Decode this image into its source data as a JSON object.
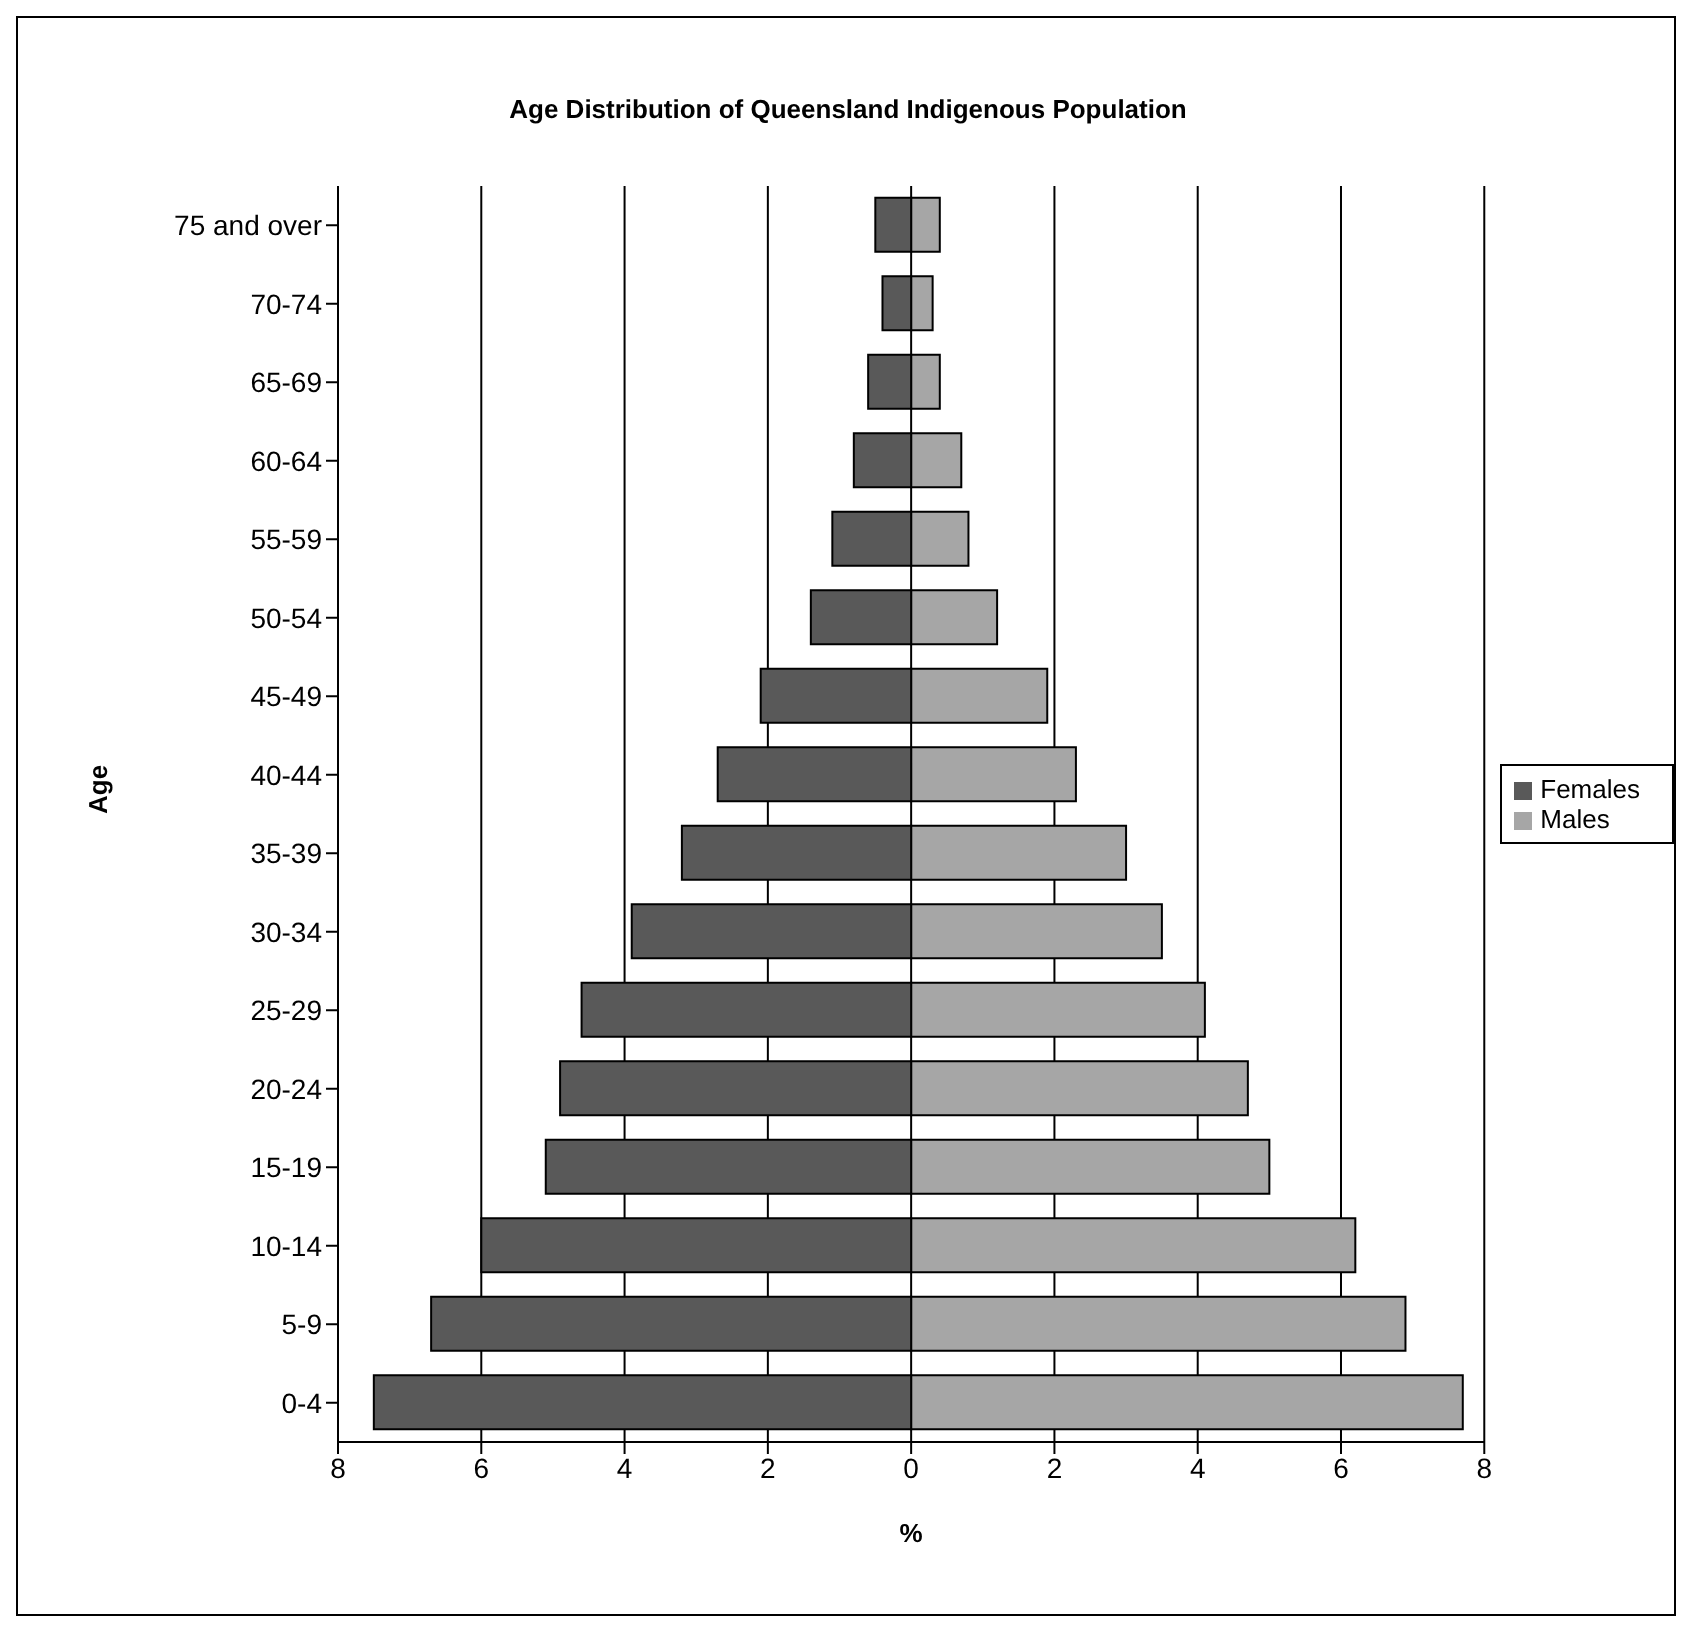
{
  "chart_data": {
    "type": "bar",
    "orientation": "horizontal",
    "stacked": true,
    "title": "Age Distribution of Queensland Indigenous Population",
    "xlabel": "%",
    "ylabel": "Age",
    "categories": [
      "75 and over",
      "70-74",
      "65-69",
      "60-64",
      "55-59",
      "50-54",
      "45-49",
      "40-44",
      "35-39",
      "30-34",
      "25-29",
      "20-24",
      "15-19",
      "10-14",
      "5-9",
      "0-4"
    ],
    "series": [
      {
        "name": "Males",
        "color": "#a6a6a6",
        "values": [
          0.4,
          0.3,
          0.4,
          0.7,
          0.8,
          1.2,
          1.9,
          2.3,
          3.0,
          3.5,
          4.1,
          4.7,
          5.0,
          6.2,
          6.9,
          7.7
        ]
      },
      {
        "name": "Females",
        "color": "#595959",
        "values": [
          -0.5,
          -0.4,
          -0.6,
          -0.8,
          -1.1,
          -1.4,
          -2.1,
          -2.7,
          -3.2,
          -3.9,
          -4.6,
          -4.9,
          -5.1,
          -6.0,
          -6.7,
          -7.5
        ]
      }
    ],
    "xlim": [
      -8,
      8
    ],
    "xticks": [
      {
        "value": -8,
        "label": "8"
      },
      {
        "value": -6,
        "label": "6"
      },
      {
        "value": -4,
        "label": "4"
      },
      {
        "value": -2,
        "label": "2"
      },
      0,
      2,
      4,
      6,
      8
    ],
    "grid": "x",
    "legend": "right"
  }
}
